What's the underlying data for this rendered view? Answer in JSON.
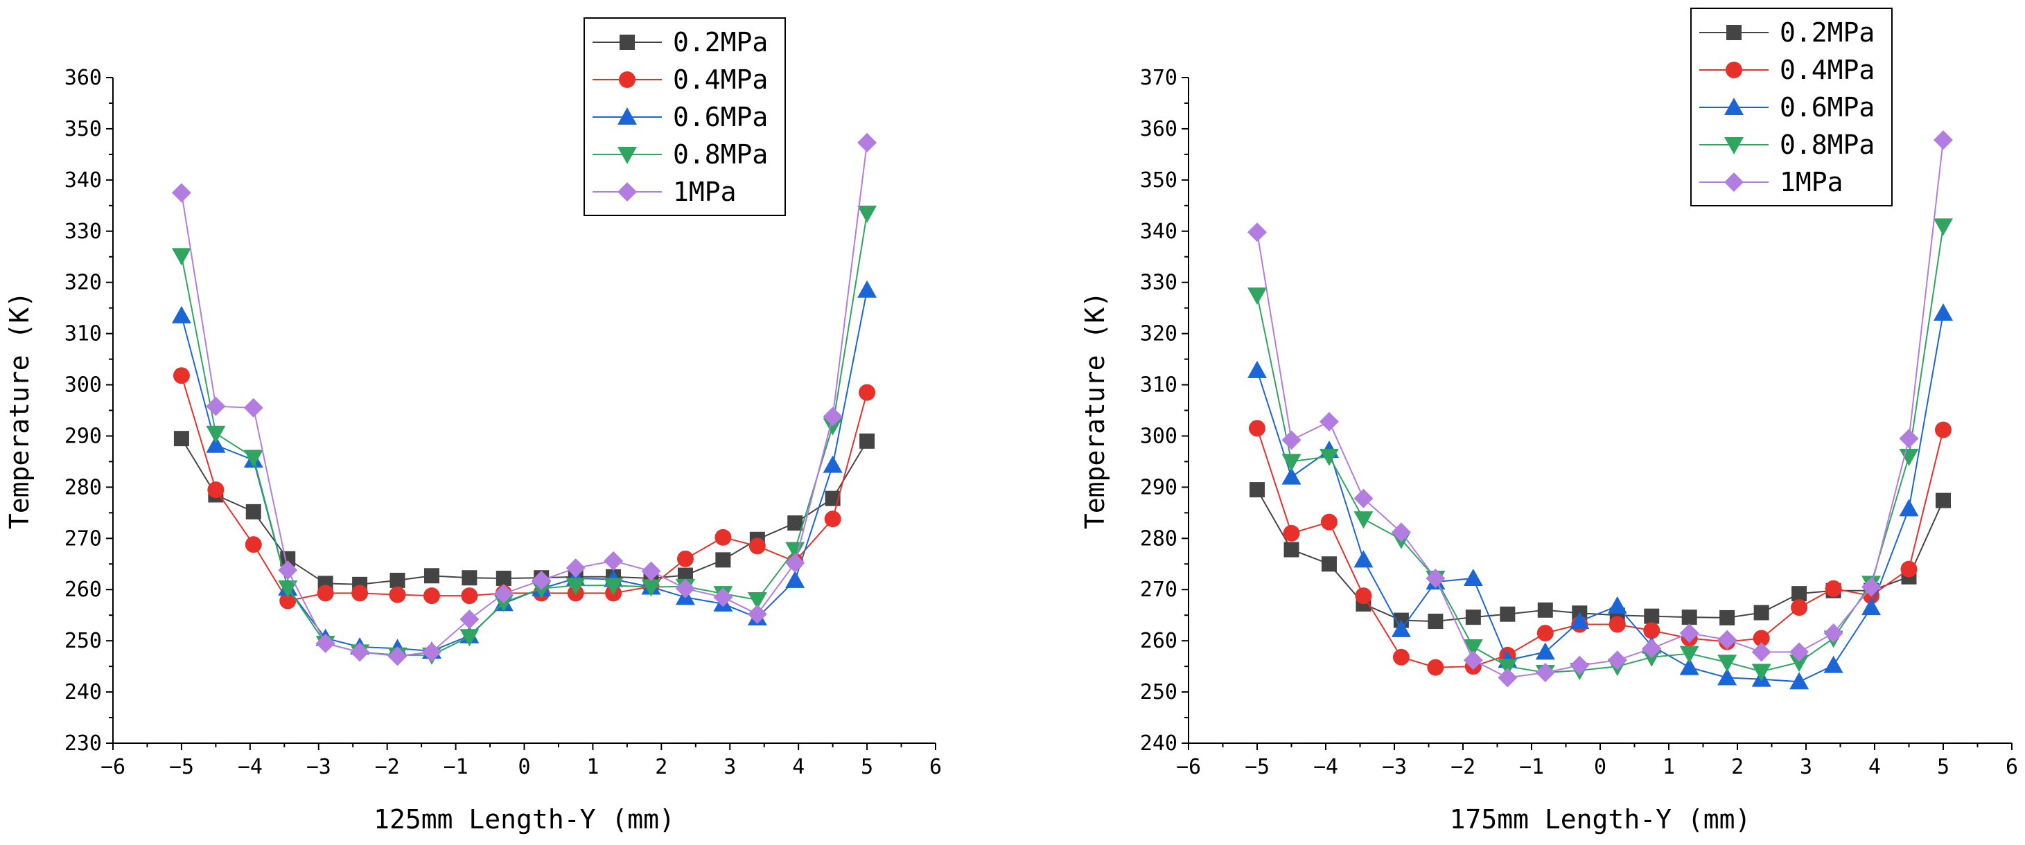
{
  "chart_data": [
    {
      "type": "line",
      "title": "",
      "xlabel": "125mm Length-Y (mm)",
      "ylabel": "Temperature (K)",
      "xlim": [
        -6,
        6
      ],
      "ylim": [
        230,
        360
      ],
      "xticks": [
        -6,
        -5,
        -4,
        -3,
        -2,
        -1,
        0,
        1,
        2,
        3,
        4,
        5,
        6
      ],
      "yticks": [
        230,
        240,
        250,
        260,
        270,
        280,
        290,
        300,
        310,
        320,
        330,
        340,
        350,
        360
      ],
      "legend_position": "top-right",
      "x": [
        -5,
        -4.5,
        -3.95,
        -3.45,
        -2.9,
        -2.4,
        -1.85,
        -1.35,
        -0.8,
        -0.3,
        0.25,
        0.75,
        1.3,
        1.85,
        2.35,
        2.9,
        3.4,
        3.95,
        4.5,
        5
      ],
      "series": [
        {
          "name": "0.2MPa",
          "color": "#444444",
          "marker": "square",
          "values": [
            289.5,
            278.5,
            275.2,
            266,
            261.2,
            261,
            261.8,
            262.7,
            262.3,
            262.2,
            262.3,
            262.5,
            262.5,
            262.2,
            262.8,
            265.8,
            269.8,
            273,
            277.8,
            289
          ]
        },
        {
          "name": "0.4MPa",
          "color": "#e8302a",
          "marker": "circle",
          "values": [
            301.8,
            279.5,
            268.8,
            257.8,
            259.3,
            259.3,
            259,
            258.8,
            258.8,
            259.3,
            259.3,
            259.3,
            259.3,
            260.6,
            266,
            270.2,
            268.5,
            265.5,
            273.8,
            298.5
          ]
        },
        {
          "name": "0.6MPa",
          "color": "#1a66d9",
          "marker": "triangle-up",
          "values": [
            313.5,
            288.2,
            285.3,
            260.3,
            250.5,
            248.8,
            248.5,
            248,
            251,
            257.3,
            260.2,
            262.2,
            262,
            260.5,
            258.5,
            257.2,
            254.5,
            261.8,
            284.3,
            318.5
          ]
        },
        {
          "name": "0.8MPa",
          "color": "#2fa560",
          "marker": "triangle-down",
          "values": [
            325.2,
            290.5,
            285.8,
            260.3,
            249.5,
            247.8,
            247.2,
            247.2,
            250.8,
            257.5,
            260.2,
            260.8,
            260.8,
            260.5,
            260.6,
            259.2,
            258,
            267.8,
            292,
            333.5
          ]
        },
        {
          "name": "1MPa",
          "color": "#b27ce0",
          "marker": "diamond",
          "values": [
            337.5,
            295.8,
            295.5,
            263.8,
            249.5,
            247.8,
            247,
            247.8,
            254.2,
            259.2,
            261.8,
            264.2,
            265.6,
            263.6,
            260.2,
            258.5,
            255.2,
            265.2,
            293.8,
            347.3
          ]
        }
      ]
    },
    {
      "type": "line",
      "title": "",
      "xlabel": "175mm Length-Y (mm)",
      "ylabel": "Temperature (K)",
      "xlim": [
        -6,
        6
      ],
      "ylim": [
        240,
        370
      ],
      "xticks": [
        -6,
        -5,
        -4,
        -3,
        -2,
        -1,
        0,
        1,
        2,
        3,
        4,
        5,
        6
      ],
      "yticks": [
        240,
        250,
        260,
        270,
        280,
        290,
        300,
        310,
        320,
        330,
        340,
        350,
        360,
        370
      ],
      "legend_position": "top-right",
      "x": [
        -5,
        -4.5,
        -3.95,
        -3.45,
        -2.9,
        -2.4,
        -1.85,
        -1.35,
        -0.8,
        -0.3,
        0.25,
        0.75,
        1.3,
        1.85,
        2.35,
        2.9,
        3.4,
        3.95,
        4.5,
        5
      ],
      "series": [
        {
          "name": "0.2MPa",
          "color": "#444444",
          "marker": "square",
          "values": [
            289.5,
            277.8,
            275,
            267.2,
            264,
            263.8,
            264.6,
            265.2,
            266,
            265.4,
            265,
            264.8,
            264.6,
            264.5,
            265.5,
            269.2,
            269.8,
            269.8,
            272.5,
            287.4
          ]
        },
        {
          "name": "0.4MPa",
          "color": "#e8302a",
          "marker": "circle",
          "values": [
            301.5,
            281,
            283.2,
            268.8,
            256.8,
            254.8,
            255,
            257.2,
            261.5,
            263.2,
            263.2,
            262,
            260.5,
            259.8,
            260.5,
            266.5,
            270.2,
            268.8,
            274,
            301.2
          ]
        },
        {
          "name": "0.6MPa",
          "color": "#1a66d9",
          "marker": "triangle-up",
          "values": [
            312.8,
            292,
            297.2,
            275.8,
            262.2,
            271.5,
            272.2,
            256.2,
            257.8,
            263.8,
            266.8,
            259,
            254.8,
            252.8,
            252.5,
            252,
            255.2,
            266.5,
            285.8,
            324
          ]
        },
        {
          "name": "0.8MPa",
          "color": "#2fa560",
          "marker": "triangle-down",
          "values": [
            327.5,
            295,
            296,
            283.8,
            279.8,
            272.2,
            258.8,
            255,
            253.8,
            254.2,
            255,
            256.8,
            257.5,
            255.8,
            254,
            255.8,
            260.5,
            271.2,
            296,
            341
          ]
        },
        {
          "name": "1MPa",
          "color": "#b27ce0",
          "marker": "diamond",
          "values": [
            339.8,
            299.2,
            302.8,
            287.8,
            281.2,
            272.2,
            256.2,
            252.8,
            253.8,
            255.2,
            256.2,
            258.5,
            261.5,
            260.2,
            257.8,
            257.8,
            261.5,
            270.5,
            299.5,
            357.8
          ]
        }
      ]
    }
  ]
}
